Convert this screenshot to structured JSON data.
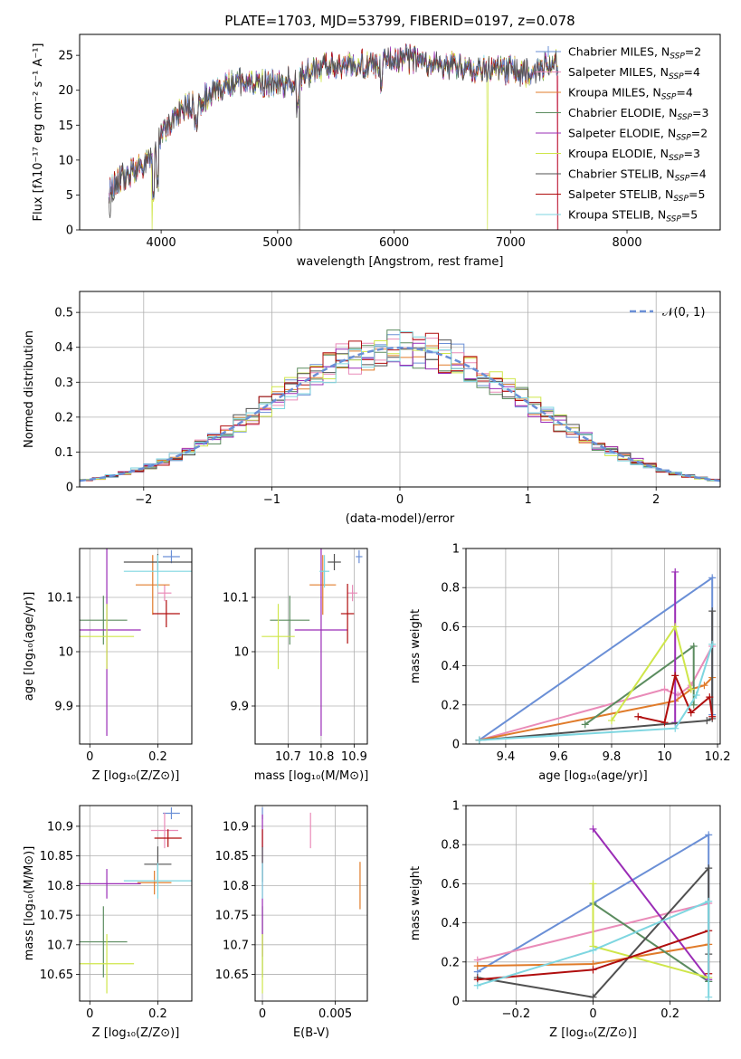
{
  "colors": {
    "Chabrier MILES": "#6a8fd6",
    "Salpeter MILES": "#e98bb8",
    "Kroupa MILES": "#e07b2a",
    "Chabrier ELODIE": "#5b8c5f",
    "Salpeter ELODIE": "#9a2cb6",
    "Kroupa ELODIE": "#cfe64a",
    "Chabrier STELIB": "#505050",
    "Salpeter STELIB": "#b00e0e",
    "Kroupa STELIB": "#7ed6e0",
    "normal": "#6a8fd6",
    "grid": "#b0b0b0"
  },
  "chart_data": [
    {
      "type": "line",
      "title": "PLATE=1703, MJD=53799, FIBERID=0197, z=0.078",
      "xlabel": "wavelength [Angstrom, rest frame]",
      "ylabel": "Flux [fλ10⁻¹⁷ erg cm⁻² s⁻¹ A⁻¹]",
      "xlim": [
        3300,
        8800
      ],
      "ylim": [
        0,
        28
      ],
      "xticks": [
        4000,
        5000,
        6000,
        7000,
        8000
      ],
      "yticks": [
        0,
        5,
        10,
        15,
        20,
        25
      ],
      "grid": false,
      "legend_position": "top-right",
      "continuum": {
        "wavelength": [
          3550,
          3700,
          3850,
          3950,
          4050,
          4150,
          4300,
          4450,
          4600,
          4750,
          4900,
          5050,
          5200,
          5350,
          5500,
          5650,
          5800,
          5950,
          6100,
          6250,
          6400,
          6550,
          6700,
          6850,
          7000,
          7150,
          7300,
          7400
        ],
        "flux": [
          6,
          8,
          9,
          12,
          15,
          17,
          18,
          20,
          21,
          21.5,
          21,
          21,
          22,
          23,
          23.5,
          24,
          23.5,
          24,
          24.5,
          24,
          23.5,
          23.5,
          23,
          23,
          23,
          22.5,
          23.5,
          24
        ]
      },
      "series": [
        {
          "name": "Chabrier MILES",
          "nssp": "2"
        },
        {
          "name": "Salpeter MILES",
          "nssp": "4"
        },
        {
          "name": "Kroupa MILES",
          "nssp": "4"
        },
        {
          "name": "Chabrier ELODIE",
          "nssp": "3"
        },
        {
          "name": "Salpeter ELODIE",
          "nssp": "2"
        },
        {
          "name": "Kroupa ELODIE",
          "nssp": "3"
        },
        {
          "name": "Chabrier STELIB",
          "nssp": "4"
        },
        {
          "name": "Salpeter STELIB",
          "nssp": "5"
        },
        {
          "name": "Kroupa STELIB",
          "nssp": "5"
        }
      ]
    },
    {
      "type": "histogram",
      "xlabel": "(data-model)/error",
      "ylabel": "Normed distribution",
      "xlim": [
        -2.5,
        2.5
      ],
      "ylim": [
        0,
        0.56
      ],
      "xticks": [
        -2,
        -1,
        0,
        1,
        2
      ],
      "yticks": [
        0.0,
        0.1,
        0.2,
        0.3,
        0.4,
        0.5
      ],
      "grid": true,
      "legend": "𝒩(0, 1)",
      "legend_position": "top-right",
      "bin_width": 0.1,
      "reference": {
        "type": "normal",
        "mean": 0,
        "sigma": 1
      }
    },
    {
      "type": "scatter",
      "xlabel": "Z [log₁₀(Z/Z⊙)]",
      "ylabel": "age  [log₁₀(age/yr)]",
      "xlim": [
        -0.03,
        0.3
      ],
      "ylim": [
        9.83,
        10.19
      ],
      "xticks": [
        0.0,
        0.2
      ],
      "yticks": [
        9.9,
        10.0,
        10.1
      ],
      "grid": true,
      "points": [
        {
          "series": "Chabrier MILES",
          "x": 0.24,
          "y": 10.175,
          "xerr": 0.025,
          "yerr": 0.012
        },
        {
          "series": "Salpeter MILES",
          "x": 0.22,
          "y": 10.108,
          "xerr": 0.02,
          "yerr": 0.015
        },
        {
          "series": "Kroupa MILES",
          "x": 0.185,
          "y": 10.123,
          "xerr": 0.05,
          "yerr": 0.055
        },
        {
          "series": "Chabrier ELODIE",
          "x": 0.04,
          "y": 10.058,
          "xerr": 0.07,
          "yerr": 0.045
        },
        {
          "series": "Salpeter ELODIE",
          "x": 0.05,
          "y": 10.04,
          "xerr": 0.1,
          "yerr": 0.195
        },
        {
          "series": "Kroupa ELODIE",
          "x": 0.05,
          "y": 10.028,
          "xerr": 0.08,
          "yerr": 0.06
        },
        {
          "series": "Chabrier STELIB",
          "x": 0.2,
          "y": 10.165,
          "xerr": 0.1,
          "yerr": 0.015
        },
        {
          "series": "Salpeter STELIB",
          "x": 0.225,
          "y": 10.07,
          "xerr": 0.04,
          "yerr": 0.025
        },
        {
          "series": "Kroupa STELIB",
          "x": 0.2,
          "y": 10.148,
          "xerr": 0.1,
          "yerr": 0.03
        }
      ]
    },
    {
      "type": "scatter",
      "xlabel": "mass [log₁₀(M/M⊙)]",
      "ylabel": "",
      "xlim": [
        10.6,
        10.94
      ],
      "ylim": [
        9.83,
        10.19
      ],
      "xticks": [
        10.7,
        10.8,
        10.9
      ],
      "yticks": [
        9.9,
        10.0,
        10.1
      ],
      "grid": true,
      "points": [
        {
          "series": "Chabrier MILES",
          "x": 10.915,
          "y": 10.175,
          "xerr": 0.01,
          "yerr": 0.012
        },
        {
          "series": "Salpeter MILES",
          "x": 10.895,
          "y": 10.108,
          "xerr": 0.015,
          "yerr": 0.015
        },
        {
          "series": "Kroupa MILES",
          "x": 10.805,
          "y": 10.123,
          "xerr": 0.04,
          "yerr": 0.055
        },
        {
          "series": "Chabrier ELODIE",
          "x": 10.705,
          "y": 10.058,
          "xerr": 0.06,
          "yerr": 0.045
        },
        {
          "series": "Salpeter ELODIE",
          "x": 10.8,
          "y": 10.04,
          "xerr": 0.08,
          "yerr": 0.195
        },
        {
          "series": "Kroupa ELODIE",
          "x": 10.67,
          "y": 10.028,
          "xerr": 0.05,
          "yerr": 0.06
        },
        {
          "series": "Chabrier STELIB",
          "x": 10.84,
          "y": 10.165,
          "xerr": 0.02,
          "yerr": 0.015
        },
        {
          "series": "Salpeter STELIB",
          "x": 10.88,
          "y": 10.07,
          "xerr": 0.02,
          "yerr": 0.055
        },
        {
          "series": "Kroupa STELIB",
          "x": 10.81,
          "y": 10.148,
          "xerr": 0.015,
          "yerr": 0.03
        }
      ]
    },
    {
      "type": "line",
      "xlabel": "age  [log₁₀(age/yr)]",
      "ylabel": "mass weight",
      "xlim": [
        9.25,
        10.21
      ],
      "ylim": [
        0,
        1
      ],
      "xticks": [
        9.4,
        9.6,
        9.8,
        10.0,
        10.2
      ],
      "yticks": [
        0.0,
        0.2,
        0.4,
        0.6,
        0.8,
        1.0
      ],
      "grid": true,
      "series": [
        {
          "name": "Chabrier MILES",
          "x": [
            9.3,
            10.18,
            10.18
          ],
          "y": [
            0.02,
            0.85,
            0.15
          ]
        },
        {
          "name": "Salpeter MILES",
          "x": [
            9.3,
            10.0,
            10.05,
            10.1,
            10.18
          ],
          "y": [
            0.02,
            0.28,
            0.25,
            0.3,
            0.5
          ]
        },
        {
          "name": "Kroupa MILES",
          "x": [
            9.3,
            10.04,
            10.1,
            10.15,
            10.18
          ],
          "y": [
            0.02,
            0.22,
            0.28,
            0.3,
            0.34
          ]
        },
        {
          "name": "Chabrier ELODIE",
          "x": [
            9.7,
            10.11,
            10.11
          ],
          "y": [
            0.1,
            0.5,
            0.2
          ]
        },
        {
          "name": "Salpeter ELODIE",
          "x": [
            10.04,
            10.04
          ],
          "y": [
            0.88,
            0.11
          ]
        },
        {
          "name": "Kroupa ELODIE",
          "x": [
            9.8,
            10.04,
            10.1
          ],
          "y": [
            0.12,
            0.6,
            0.28
          ]
        },
        {
          "name": "Chabrier STELIB",
          "x": [
            9.3,
            10.16,
            10.18,
            10.18
          ],
          "y": [
            0.02,
            0.12,
            0.13,
            0.68
          ]
        },
        {
          "name": "Salpeter STELIB",
          "x": [
            9.9,
            10.0,
            10.04,
            10.1,
            10.17,
            10.18
          ],
          "y": [
            0.14,
            0.11,
            0.35,
            0.16,
            0.24,
            0.14
          ]
        },
        {
          "name": "Kroupa STELIB",
          "x": [
            9.3,
            10.04,
            10.12,
            10.18
          ],
          "y": [
            0.02,
            0.08,
            0.25,
            0.51
          ]
        }
      ]
    },
    {
      "type": "scatter",
      "xlabel": "Z [log₁₀(Z/Z⊙)]",
      "ylabel": "mass [log₁₀(M/M⊙)]",
      "xlim": [
        -0.03,
        0.3
      ],
      "ylim": [
        10.605,
        10.935
      ],
      "xticks": [
        0.0,
        0.2
      ],
      "yticks": [
        10.65,
        10.7,
        10.75,
        10.8,
        10.85,
        10.9
      ],
      "grid": true,
      "points": [
        {
          "series": "Chabrier MILES",
          "x": 0.24,
          "y": 10.922,
          "xerr": 0.025,
          "yerr": 0.01
        },
        {
          "series": "Salpeter MILES",
          "x": 0.22,
          "y": 10.893,
          "xerr": 0.04,
          "yerr": 0.03
        },
        {
          "series": "Kroupa MILES",
          "x": 0.19,
          "y": 10.805,
          "xerr": 0.05,
          "yerr": 0.02
        },
        {
          "series": "Chabrier ELODIE",
          "x": 0.04,
          "y": 10.705,
          "xerr": 0.07,
          "yerr": 0.06
        },
        {
          "series": "Salpeter ELODIE",
          "x": 0.05,
          "y": 10.803,
          "xerr": 0.1,
          "yerr": 0.025
        },
        {
          "series": "Kroupa ELODIE",
          "x": 0.05,
          "y": 10.668,
          "xerr": 0.08,
          "yerr": 0.05
        },
        {
          "series": "Chabrier STELIB",
          "x": 0.2,
          "y": 10.836,
          "xerr": 0.04,
          "yerr": 0.03
        },
        {
          "series": "Salpeter STELIB",
          "x": 0.23,
          "y": 10.88,
          "xerr": 0.04,
          "yerr": 0.015
        },
        {
          "series": "Kroupa STELIB",
          "x": 0.2,
          "y": 10.808,
          "xerr": 0.1,
          "yerr": 0.03
        }
      ]
    },
    {
      "type": "scatter",
      "xlabel": "E(B-V)",
      "ylabel": "",
      "xlim": [
        -0.0005,
        0.0072
      ],
      "ylim": [
        10.605,
        10.935
      ],
      "xticks": [
        0.0,
        0.005
      ],
      "yticks": [
        10.65,
        10.7,
        10.75,
        10.8,
        10.85,
        10.9
      ],
      "grid": true,
      "points": [
        {
          "series": "Chabrier MILES",
          "x": 0.0,
          "y": 10.922,
          "xerr": 0.0,
          "yerr": 0.01
        },
        {
          "series": "Salpeter MILES",
          "x": 0.0033,
          "y": 10.893,
          "xerr": 0.0,
          "yerr": 0.03
        },
        {
          "series": "Kroupa MILES",
          "x": 0.0067,
          "y": 10.8,
          "xerr": 0.0,
          "yerr": 0.04
        },
        {
          "series": "Chabrier ELODIE",
          "x": 0.0,
          "y": 10.705,
          "xerr": 0.0,
          "yerr": 0.06
        },
        {
          "series": "Salpeter ELODIE",
          "x": 0.0,
          "y": 10.8,
          "xerr": 0.0,
          "yerr": 0.12
        },
        {
          "series": "Kroupa ELODIE",
          "x": 0.0,
          "y": 10.668,
          "xerr": 0.0,
          "yerr": 0.05
        },
        {
          "series": "Chabrier STELIB",
          "x": 0.0,
          "y": 10.836,
          "xerr": 0.0,
          "yerr": 0.03
        },
        {
          "series": "Salpeter STELIB",
          "x": 0.0,
          "y": 10.88,
          "xerr": 0.0,
          "yerr": 0.015
        },
        {
          "series": "Kroupa STELIB",
          "x": 0.0,
          "y": 10.808,
          "xerr": 0.0,
          "yerr": 0.03
        }
      ]
    },
    {
      "type": "line",
      "xlabel": "Z [log₁₀(Z/Z⊙)]",
      "ylabel": "mass weight",
      "xlim": [
        -0.33,
        0.33
      ],
      "ylim": [
        0,
        1
      ],
      "xticks": [
        -0.2,
        0.0,
        0.2
      ],
      "yticks": [
        0.0,
        0.2,
        0.4,
        0.6,
        0.8,
        1.0
      ],
      "grid": true,
      "series": [
        {
          "name": "Chabrier MILES",
          "x": [
            -0.3,
            0.0,
            0.3,
            0.3
          ],
          "y": [
            0.15,
            0.5,
            0.85,
            0.1
          ]
        },
        {
          "name": "Salpeter MILES",
          "x": [
            -0.3,
            0.3
          ],
          "y": [
            0.21,
            0.5
          ]
        },
        {
          "name": "Kroupa MILES",
          "x": [
            -0.3,
            0.0,
            0.3
          ],
          "y": [
            0.18,
            0.19,
            0.29
          ]
        },
        {
          "name": "Chabrier ELODIE",
          "x": [
            0.0,
            0.3
          ],
          "y": [
            0.5,
            0.1
          ]
        },
        {
          "name": "Salpeter ELODIE",
          "x": [
            0.0,
            0.3
          ],
          "y": [
            0.88,
            0.11
          ]
        },
        {
          "name": "Kroupa ELODIE",
          "x": [
            0.0,
            0.0,
            0.3
          ],
          "y": [
            0.6,
            0.28,
            0.12
          ]
        },
        {
          "name": "Chabrier STELIB",
          "x": [
            -0.3,
            0.0,
            0.3,
            0.3
          ],
          "y": [
            0.12,
            0.02,
            0.68,
            0.24
          ]
        },
        {
          "name": "Salpeter STELIB",
          "x": [
            -0.3,
            0.0,
            0.3,
            0.3
          ],
          "y": [
            0.11,
            0.16,
            0.36,
            0.14
          ]
        },
        {
          "name": "Kroupa STELIB",
          "x": [
            -0.3,
            0.0,
            0.3,
            0.3
          ],
          "y": [
            0.08,
            0.26,
            0.51,
            0.02
          ]
        }
      ]
    }
  ]
}
